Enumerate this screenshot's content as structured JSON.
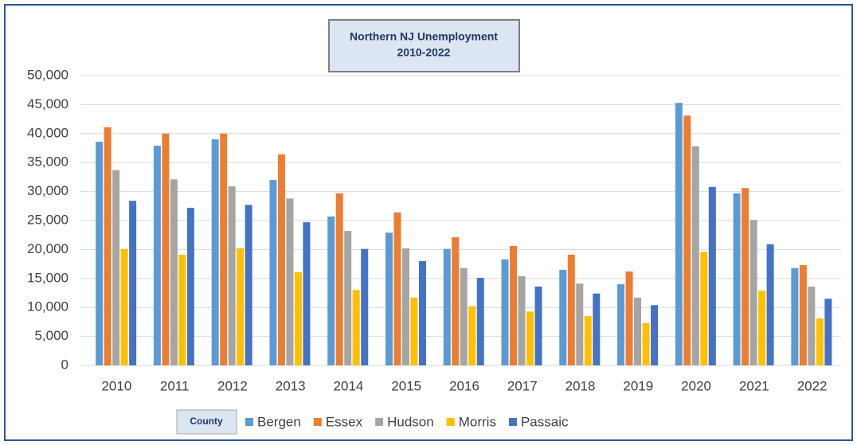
{
  "chart_data": {
    "type": "bar",
    "title": "Northern NJ Unemployment",
    "subtitle": "2010-2022",
    "categories": [
      "2010",
      "2011",
      "2012",
      "2013",
      "2014",
      "2015",
      "2016",
      "2017",
      "2018",
      "2019",
      "2020",
      "2021",
      "2022"
    ],
    "series": [
      {
        "name": "Bergen",
        "color": "#5b9bd5",
        "values": [
          38600,
          37900,
          39000,
          32000,
          25700,
          22900,
          20100,
          18300,
          16500,
          14000,
          45300,
          29700,
          16800
        ]
      },
      {
        "name": "Essex",
        "color": "#ed7d31",
        "values": [
          41100,
          40000,
          40000,
          36400,
          29700,
          26400,
          22100,
          20600,
          19100,
          16200,
          43100,
          30600,
          17300
        ]
      },
      {
        "name": "Hudson",
        "color": "#a5a5a5",
        "values": [
          33700,
          32100,
          30900,
          28800,
          23200,
          20200,
          16800,
          15400,
          14100,
          11700,
          37800,
          25100,
          13600
        ]
      },
      {
        "name": "Morris",
        "color": "#ffc000",
        "values": [
          20100,
          19100,
          20200,
          16100,
          13000,
          11700,
          10200,
          9300,
          8500,
          7300,
          19600,
          12900,
          8100
        ]
      },
      {
        "name": "Passaic",
        "color": "#4472c4",
        "values": [
          28400,
          27200,
          27700,
          24700,
          20100,
          18000,
          15100,
          13600,
          12400,
          10400,
          30800,
          20900,
          11500
        ]
      }
    ],
    "ylim": [
      0,
      50000
    ],
    "yticks": [
      0,
      {
        "value": 5000,
        "label": "5,000"
      },
      {
        "value": 10000,
        "label": "10,000"
      },
      {
        "value": 15000,
        "label": "15,000"
      },
      {
        "value": 20000,
        "label": "20,000"
      },
      {
        "value": 25000,
        "label": "25,000"
      },
      {
        "value": 30000,
        "label": "30,000"
      },
      {
        "value": 35000,
        "label": "35,000"
      },
      {
        "value": 40000,
        "label": "40,000"
      },
      {
        "value": 45000,
        "label": "45,000"
      },
      {
        "value": 50000,
        "label": "50,000"
      }
    ],
    "grid": true,
    "legend_title": "County",
    "legend_position": "bottom"
  }
}
